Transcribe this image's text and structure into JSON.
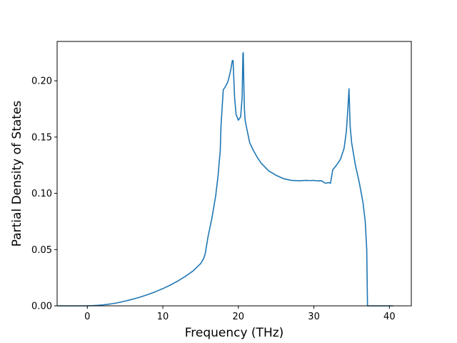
{
  "chart_data": {
    "type": "line",
    "title": "",
    "xlabel": "Frequency (THz)",
    "ylabel": "Partial Density of States",
    "xlim": [
      -4.0,
      42.9
    ],
    "ylim": [
      0.0,
      0.235
    ],
    "xticks": [
      0,
      10,
      20,
      30,
      40
    ],
    "xtick_labels": [
      "0",
      "10",
      "20",
      "30",
      "40"
    ],
    "yticks": [
      0.0,
      0.05,
      0.1,
      0.15,
      0.2
    ],
    "ytick_labels": [
      "0.00",
      "0.05",
      "0.10",
      "0.15",
      "0.20"
    ],
    "grid": false,
    "legend": false,
    "color": "#1f77b4",
    "series": [
      {
        "x": [
          -3.9,
          -2,
          0,
          0.5,
          1,
          2,
          3,
          4,
          5,
          6,
          7,
          8,
          9,
          10,
          11,
          12,
          13,
          14,
          15,
          15.4,
          15.6,
          16,
          16.5,
          17,
          17.3,
          17.6,
          17.7,
          18,
          18.3,
          18.6,
          18.8,
          19.0,
          19.2,
          19.3,
          19.5,
          19.7,
          20.0,
          20.3,
          20.5,
          20.6,
          20.65,
          20.7,
          20.8,
          20.9,
          21.1,
          21.5,
          22,
          22.5,
          23,
          24,
          25,
          26,
          27,
          28,
          29,
          29.5,
          30,
          30.5,
          31,
          31.5,
          32,
          32.2,
          32.5,
          33,
          33.5,
          34,
          34.3,
          34.5,
          34.65,
          34.8,
          35,
          35.5,
          36,
          36.5,
          36.8,
          37.0,
          37.1,
          38,
          40.5
        ],
        "y": [
          0.0,
          0.0,
          0.0,
          0.0001,
          0.0003,
          0.0008,
          0.0016,
          0.0027,
          0.0042,
          0.0059,
          0.0078,
          0.01,
          0.0125,
          0.0153,
          0.0185,
          0.0221,
          0.0263,
          0.031,
          0.0375,
          0.042,
          0.046,
          0.062,
          0.078,
          0.098,
          0.115,
          0.138,
          0.16,
          0.192,
          0.195,
          0.199,
          0.204,
          0.21,
          0.218,
          0.218,
          0.185,
          0.17,
          0.165,
          0.168,
          0.185,
          0.224,
          0.225,
          0.205,
          0.175,
          0.165,
          0.158,
          0.145,
          0.138,
          0.132,
          0.127,
          0.12,
          0.116,
          0.113,
          0.1115,
          0.1112,
          0.1115,
          0.1113,
          0.1115,
          0.111,
          0.1112,
          0.109,
          0.1095,
          0.109,
          0.121,
          0.125,
          0.13,
          0.14,
          0.155,
          0.175,
          0.193,
          0.16,
          0.145,
          0.125,
          0.11,
          0.092,
          0.075,
          0.05,
          0.0,
          0.0,
          0.0
        ]
      }
    ]
  }
}
